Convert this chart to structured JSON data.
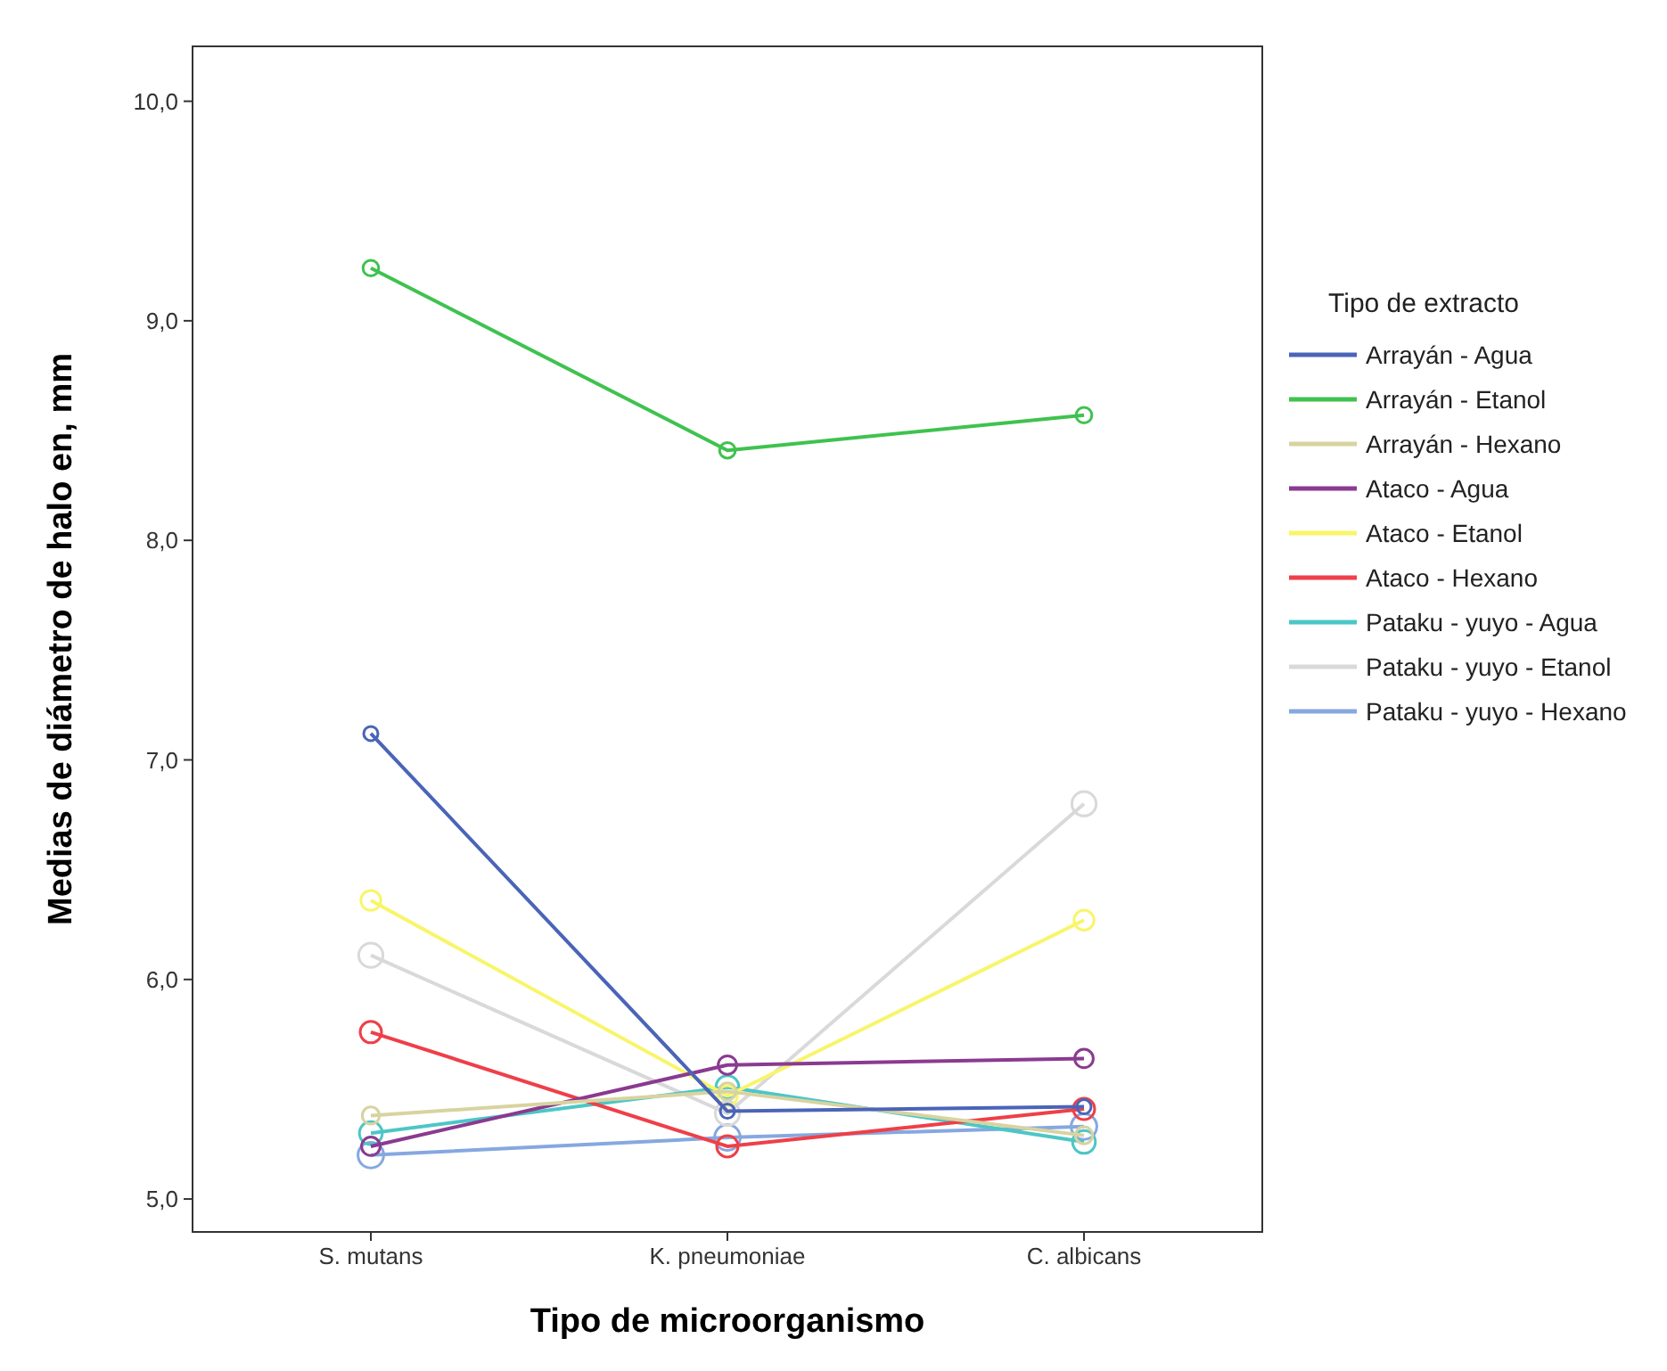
{
  "chart_data": {
    "type": "line",
    "xlabel": "Tipo de microorganismo",
    "ylabel": "Medias de diámetro de halo en,  mm",
    "legend_title": "Tipo de extracto",
    "legend": "right",
    "marker": "circle",
    "grid": false,
    "categories": [
      "S. mutans",
      "K. pneumoniae",
      "C. albicans"
    ],
    "ylim": [
      4.85,
      10.25
    ],
    "yticks": [
      {
        "value": 5,
        "label": "5,0"
      },
      {
        "value": 6,
        "label": "6,0"
      },
      {
        "value": 7,
        "label": "7,0"
      },
      {
        "value": 8,
        "label": "8,0"
      },
      {
        "value": 9,
        "label": "9,0"
      },
      {
        "value": 10,
        "label": "10,0"
      }
    ],
    "series": [
      {
        "name": "Arrayán - Agua",
        "color": "#4a64b8",
        "values": [
          7.12,
          5.4,
          5.42
        ]
      },
      {
        "name": "Arrayán - Etanol",
        "color": "#3fc24f",
        "values": [
          9.24,
          8.41,
          8.57
        ]
      },
      {
        "name": "Arrayán - Hexano",
        "color": "#d8d3a0",
        "values": [
          5.38,
          5.49,
          5.29
        ]
      },
      {
        "name": "Ataco - Agua",
        "color": "#8a3a90",
        "values": [
          5.24,
          5.61,
          5.64
        ]
      },
      {
        "name": "Ataco - Etanol",
        "color": "#f8f56a",
        "values": [
          6.36,
          5.47,
          6.27
        ]
      },
      {
        "name": "Ataco - Hexano",
        "color": "#ef3f48",
        "values": [
          5.76,
          5.24,
          5.41
        ]
      },
      {
        "name": "Pataku - yuyo - Agua",
        "color": "#4cc6c6",
        "values": [
          5.3,
          5.51,
          5.26
        ]
      },
      {
        "name": "Pataku - yuyo - Etanol",
        "color": "#d9d9d9",
        "values": [
          6.11,
          5.39,
          6.8
        ]
      },
      {
        "name": "Pataku - yuyo - Hexano",
        "color": "#86a8e0",
        "values": [
          5.2,
          5.28,
          5.33
        ]
      }
    ]
  }
}
